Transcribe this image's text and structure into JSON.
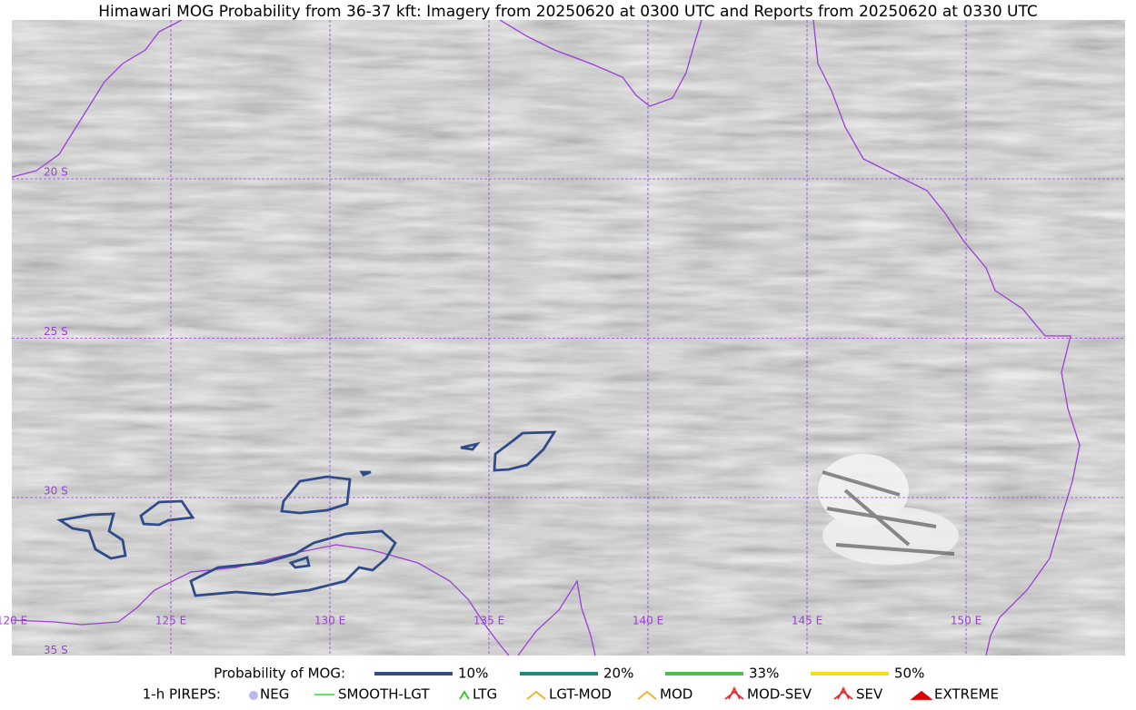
{
  "title": "Himawari MOG Probability from 36-37 kft: Imagery from 20250620 at 0300 UTC and Reports from 20250620 at 0330 UTC",
  "map": {
    "lon_labels": [
      "120 E",
      "125 E",
      "130 E",
      "135 E",
      "140 E",
      "145 E",
      "150 E"
    ],
    "lat_labels": [
      "20 S",
      "25 S",
      "30 S",
      "35 S"
    ],
    "grid_color": "#9b3fd6",
    "coast_color": "#9b3fd6",
    "contour_color": "#2f4b8a"
  },
  "probability_legend": {
    "label": "Probability of MOG:",
    "items": [
      {
        "name": "10%",
        "color": "#2f4b8a"
      },
      {
        "name": "20%",
        "color": "#1d8a80"
      },
      {
        "name": "33%",
        "color": "#4cc24c"
      },
      {
        "name": "50%",
        "color": "#f5e012"
      }
    ]
  },
  "pirep_legend": {
    "label": "1-h PIREPS:",
    "items": [
      {
        "name": "NEG",
        "color": "#b8b8f0"
      },
      {
        "name": "SMOOTH-LGT",
        "color": "#33dd33"
      },
      {
        "name": "LTG",
        "color": "#22cc22"
      },
      {
        "name": "LGT-MOD",
        "color": "#f0b020"
      },
      {
        "name": "MOD",
        "color": "#f0b020"
      },
      {
        "name": "MOD-SEV",
        "color": "#e83030"
      },
      {
        "name": "SEV",
        "color": "#e83030"
      },
      {
        "name": "EXTREME",
        "color": "#e00000"
      }
    ]
  }
}
